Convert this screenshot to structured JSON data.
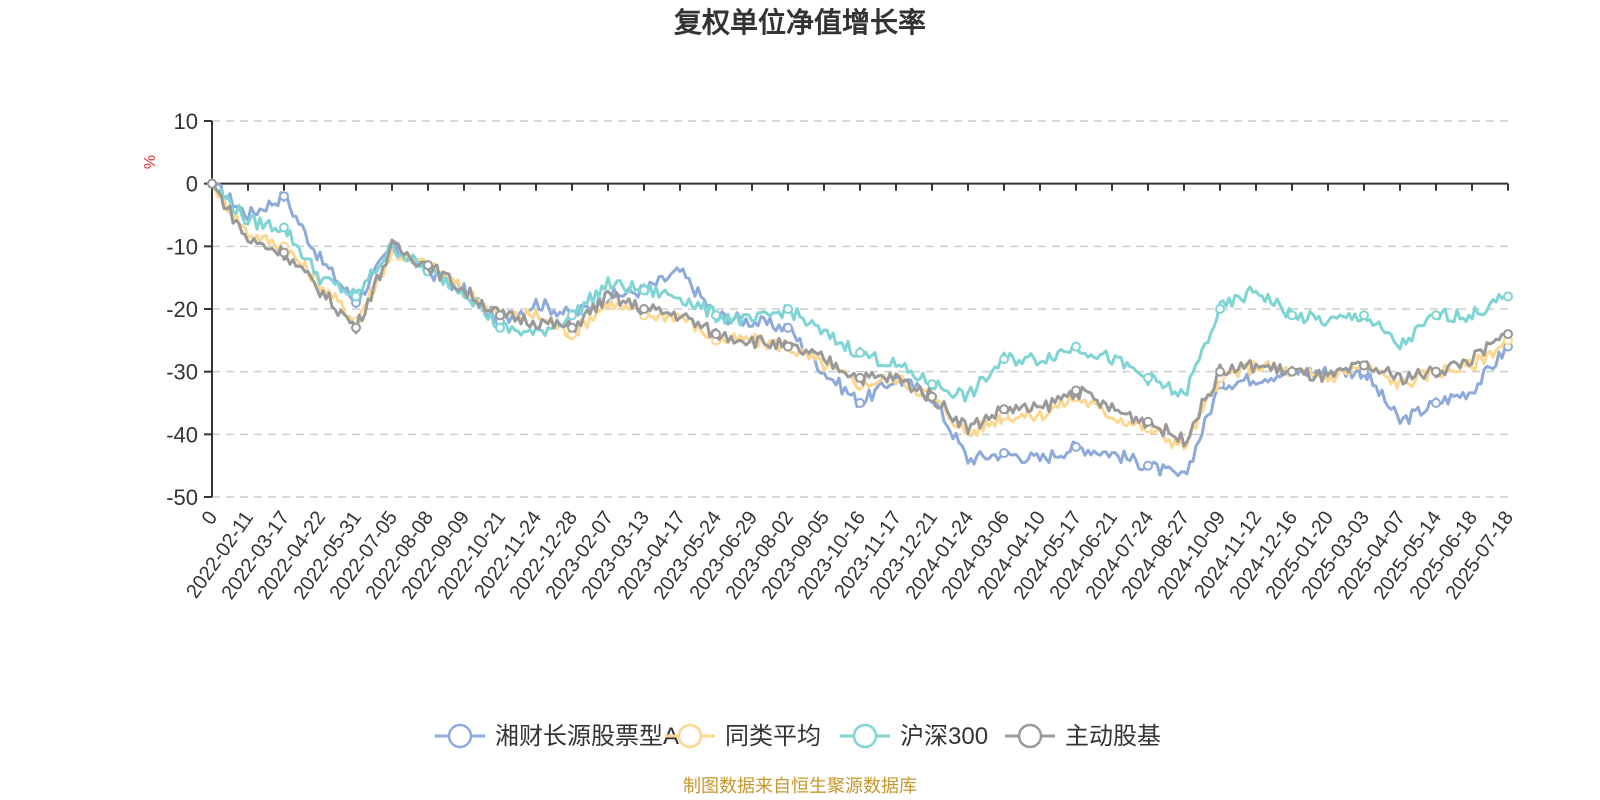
{
  "chart_data": {
    "type": "line",
    "title": "复权单位净值增长率",
    "ylabel": "%",
    "ylim": [
      -50,
      10
    ],
    "yticks": [
      10,
      0,
      -10,
      -20,
      -30,
      -40,
      -50
    ],
    "grid": true,
    "legend_position": "bottom",
    "x": [
      "0",
      "2022-02-11",
      "2022-03-17",
      "2022-04-22",
      "2022-05-31",
      "2022-07-05",
      "2022-08-08",
      "2022-09-09",
      "2022-10-21",
      "2022-11-24",
      "2022-12-28",
      "2023-02-07",
      "2023-03-13",
      "2023-04-17",
      "2023-05-24",
      "2023-06-29",
      "2023-08-02",
      "2023-09-05",
      "2023-10-16",
      "2023-11-17",
      "2023-12-21",
      "2024-01-24",
      "2024-03-06",
      "2024-04-10",
      "2024-05-17",
      "2024-06-21",
      "2024-07-24",
      "2024-08-27",
      "2024-10-09",
      "2024-11-12",
      "2024-12-16",
      "2025-01-20",
      "2025-03-03",
      "2025-04-07",
      "2025-05-14",
      "2025-06-18",
      "2025-07-18"
    ],
    "series": [
      {
        "name": "湘财长源股票型A",
        "color": "#8eaadb",
        "values": [
          0,
          -5,
          -2,
          -12,
          -19,
          -10,
          -14,
          -17,
          -22,
          -19,
          -21,
          -18,
          -17,
          -14,
          -21,
          -22,
          -23,
          -30,
          -35,
          -31,
          -34,
          -44,
          -43,
          -44,
          -42,
          -43,
          -45,
          -47,
          -32,
          -31,
          -30,
          -30,
          -30,
          -38,
          -35,
          -33,
          -26
        ]
      },
      {
        "name": "同类平均",
        "color": "#fdd78e",
        "values": [
          0,
          -8,
          -10,
          -16,
          -22,
          -11,
          -13,
          -17,
          -21,
          -21,
          -24,
          -19,
          -21,
          -21,
          -25,
          -25,
          -26,
          -29,
          -32,
          -31,
          -34,
          -40,
          -37,
          -37,
          -34,
          -37,
          -39,
          -42,
          -31,
          -29,
          -30,
          -31,
          -29,
          -32,
          -30,
          -29,
          -25
        ]
      },
      {
        "name": "沪深300",
        "color": "#7fd4d4",
        "values": [
          0,
          -6,
          -7,
          -15,
          -18,
          -10,
          -14,
          -17,
          -23,
          -24,
          -21,
          -16,
          -17,
          -18,
          -21,
          -22,
          -20,
          -24,
          -27,
          -29,
          -32,
          -34,
          -28,
          -28,
          -26,
          -28,
          -31,
          -34,
          -20,
          -17,
          -21,
          -22,
          -21,
          -26,
          -21,
          -21,
          -18
        ]
      },
      {
        "name": "主动股基",
        "color": "#999999",
        "values": [
          0,
          -9,
          -11,
          -17,
          -23,
          -10,
          -13,
          -17,
          -21,
          -22,
          -23,
          -18,
          -20,
          -21,
          -24,
          -25,
          -26,
          -28,
          -31,
          -31,
          -34,
          -39,
          -36,
          -36,
          -33,
          -36,
          -38,
          -41,
          -30,
          -29,
          -30,
          -31,
          -29,
          -31,
          -30,
          -28,
          -24
        ]
      }
    ]
  },
  "source_note": "制图数据来自恒生聚源数据库"
}
